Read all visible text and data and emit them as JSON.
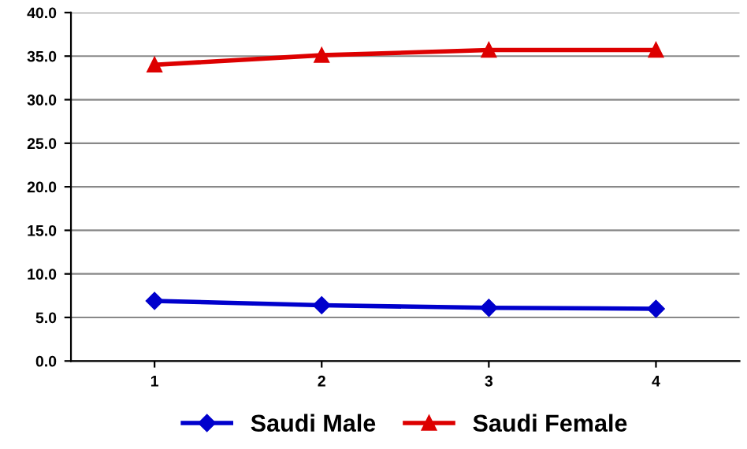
{
  "chart_data": {
    "type": "line",
    "categories": [
      "1",
      "2",
      "3",
      "4"
    ],
    "series": [
      {
        "name": "Saudi Male",
        "color": "#0000cc",
        "marker": "diamond",
        "values": [
          6.9,
          6.4,
          6.1,
          6.0
        ]
      },
      {
        "name": "Saudi Female",
        "color": "#dd0000",
        "marker": "triangle",
        "values": [
          34.0,
          35.1,
          35.7,
          35.7
        ]
      }
    ],
    "ylim": [
      0,
      40
    ],
    "yticks": [
      {
        "value": 0,
        "label": "0.0"
      },
      {
        "value": 5,
        "label": "5.0"
      },
      {
        "value": 10,
        "label": "10.0"
      },
      {
        "value": 15,
        "label": "15.0"
      },
      {
        "value": 20,
        "label": "20.0"
      },
      {
        "value": 25,
        "label": "25.0"
      },
      {
        "value": 30,
        "label": "30.0"
      },
      {
        "value": 35,
        "label": "35.0"
      },
      {
        "value": 40,
        "label": "40.0"
      }
    ],
    "grid": "y",
    "legend": "bottom",
    "line_style": "solid"
  }
}
